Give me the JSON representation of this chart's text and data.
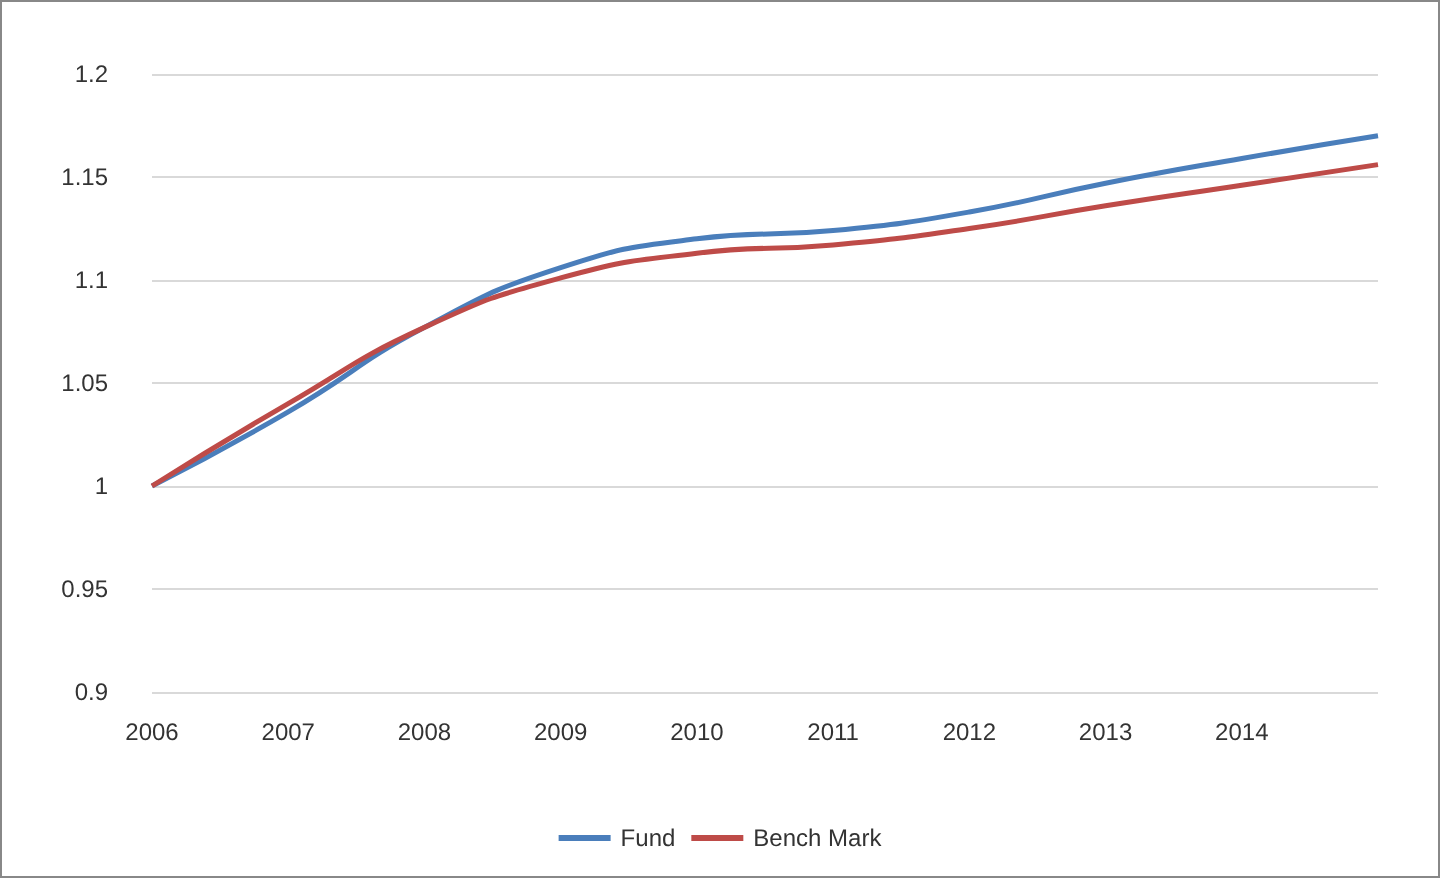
{
  "chart_data": {
    "type": "line",
    "categories": [
      "2006",
      "2007",
      "2008",
      "2009",
      "2010",
      "2011",
      "2012",
      "2013",
      "2014",
      null
    ],
    "series": [
      {
        "name": "Fund",
        "color": "#4a7ebb",
        "values": [
          1.0,
          1.036,
          1.077,
          1.106,
          1.12,
          1.124,
          1.133,
          1.147,
          1.159,
          1.17
        ]
      },
      {
        "name": "Bench Mark",
        "color": "#be4b48",
        "values": [
          1.0,
          1.04,
          1.077,
          1.101,
          1.113,
          1.117,
          1.125,
          1.136,
          1.146,
          1.156
        ]
      }
    ],
    "ylim": [
      0.9,
      1.2
    ],
    "yticks": [
      0.9,
      0.95,
      1,
      1.05,
      1.1,
      1.15,
      1.2
    ],
    "grid": "y",
    "legend": "bottom",
    "marker": "none",
    "line_style": "solid"
  }
}
